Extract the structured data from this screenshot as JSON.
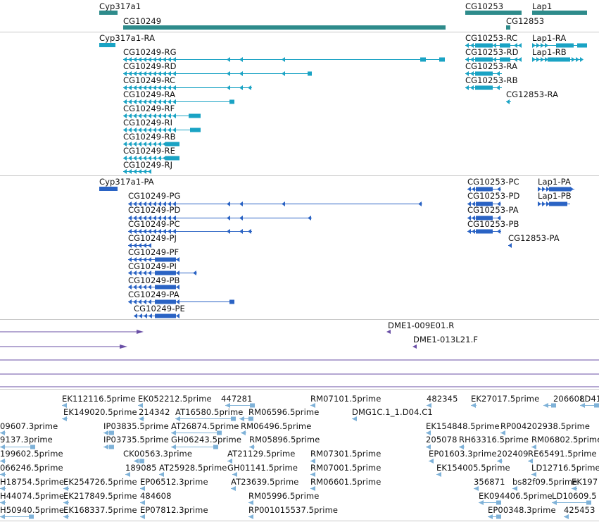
{
  "colors": {
    "gene": "#2e8b8b",
    "mrna": "#1aa3c4",
    "cds": "#2a63c4",
    "clone": "#6a4fa6",
    "est": "#7fb2d8",
    "separator": "#c8c8c8"
  },
  "genes": [
    {
      "name": "Cyp317a1",
      "label": "Cyp317a1"
    },
    {
      "name": "CG10249",
      "label": "CG10249"
    },
    {
      "name": "CG10253",
      "label": "CG10253"
    },
    {
      "name": "Lap1",
      "label": "Lap1"
    },
    {
      "name": "CG12853",
      "label": "CG12853"
    }
  ],
  "transcripts": [
    "Cyp317a1-RA",
    "CG10249-RG",
    "CG10249-RD",
    "CG10249-RC",
    "CG10249-RA",
    "CG10249-RF",
    "CG10249-RI",
    "CG10249-RB",
    "CG10249-RE",
    "CG10249-RJ",
    "CG10253-RC",
    "Lap1-RA",
    "CG10253-RD",
    "Lap1-RB",
    "CG10253-RA",
    "CG10253-RB",
    "CG12853-RA"
  ],
  "proteins": [
    "Cyp317a1-PA",
    "CG10249-PG",
    "CG10249-PD",
    "CG10249-PC",
    "CG10249-PJ",
    "CG10249-PF",
    "CG10249-PI",
    "CG10249-PB",
    "CG10249-PA",
    "CG10249-PE",
    "CG10253-PC",
    "Lap1-PA",
    "CG10253-PD",
    "Lap1-PB",
    "CG10253-PA",
    "CG10253-PB",
    "CG12853-PA"
  ],
  "clones": [
    "DME1-009E01.R",
    "DME1-013L21.F"
  ],
  "ests": [
    "EK112116.5prime",
    "EK052212.5prime",
    "447281",
    "RM07101.5prime",
    "482345",
    "EK27017.5prime",
    "206608",
    "LD41",
    "EK149020.5prime",
    "214342",
    "AT16580.5prime",
    "RM06596.5prime",
    "DMG1C.1_1.D04.C1",
    "09607.3prime",
    "IP03835.5prime",
    "AT26874.5prime",
    "RM06496.5prime",
    "EK154848.5prime",
    "RP004202938.5prime",
    "9137.3prime",
    "IP03735.5prime",
    "GH06243.5prime",
    "RM05896.5prime",
    "205078",
    "RH63316.5prime",
    "RM06802.5prime",
    "199602.5prime",
    "CK00563.3prime",
    "AT21129.5prime",
    "RM07301.5prime",
    "EP01603.3prime",
    "202409",
    "RE65491.5prime",
    "066246.5prime",
    "189085",
    "AT25928.5prime",
    "GH01141.5prime",
    "RM07001.5prime",
    "EK154005.5prime",
    "LD12716.5prime",
    "H18754.5prime",
    "EK254726.5prime",
    "EP06512.3prime",
    "AT23639.5prime",
    "RM06601.5prime",
    "356871",
    "bs82f09.5prime",
    "EK197",
    "H44074.5prime",
    "EK217849.5prime",
    "484608",
    "RM05996.5prime",
    "EK094406.5prime",
    "LD10609.5",
    "H50940.5prime",
    "EK168337.5prime",
    "EP07812.3prime",
    "RP001015537.5prime",
    "EP00348.3prime",
    "425453"
  ]
}
